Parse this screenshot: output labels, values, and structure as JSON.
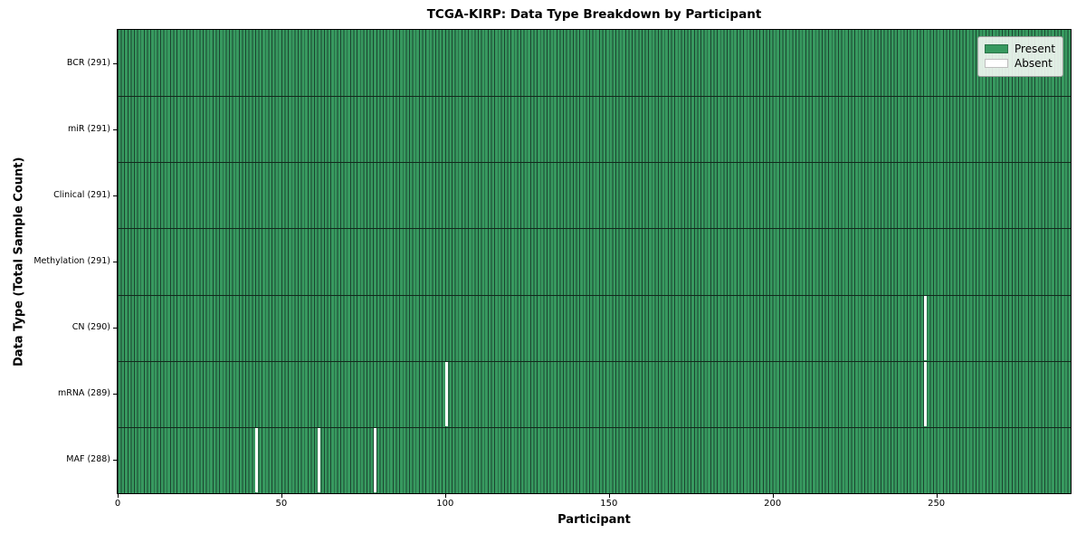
{
  "chart_data": {
    "type": "heatmap",
    "title": "TCGA-KIRP: Data Type Breakdown by Participant",
    "xlabel": "Participant",
    "ylabel": "Data Type (Total Sample Count)",
    "x_ticks": [
      0,
      50,
      100,
      150,
      200,
      250
    ],
    "x_range": [
      0,
      291
    ],
    "n_participants": 291,
    "grid": "row-separators-on",
    "legend": {
      "position": "upper-right",
      "entries": [
        {
          "label": "Present",
          "color": "#37995f"
        },
        {
          "label": "Absent",
          "color": "#ffffff"
        }
      ]
    },
    "rows": [
      {
        "label": "BCR (291)",
        "data_type": "BCR",
        "present_count": 291,
        "absent_participants": []
      },
      {
        "label": "miR (291)",
        "data_type": "miR",
        "present_count": 291,
        "absent_participants": []
      },
      {
        "label": "Clinical (291)",
        "data_type": "Clinical",
        "present_count": 291,
        "absent_participants": []
      },
      {
        "label": "Methylation (291)",
        "data_type": "Methylation",
        "present_count": 291,
        "absent_participants": []
      },
      {
        "label": "CN (290)",
        "data_type": "CN",
        "present_count": 290,
        "absent_participants": [
          246
        ]
      },
      {
        "label": "mRNA (289)",
        "data_type": "mRNA",
        "present_count": 289,
        "absent_participants": [
          100,
          246
        ]
      },
      {
        "label": "MAF (288)",
        "data_type": "MAF",
        "present_count": 288,
        "absent_participants": [
          42,
          61,
          78
        ]
      }
    ],
    "colors": {
      "present": "#37995f",
      "bar_edge": "#1b4530",
      "row_separator": "#12291c",
      "absent": "#ffffff",
      "axis": "#000000"
    }
  }
}
